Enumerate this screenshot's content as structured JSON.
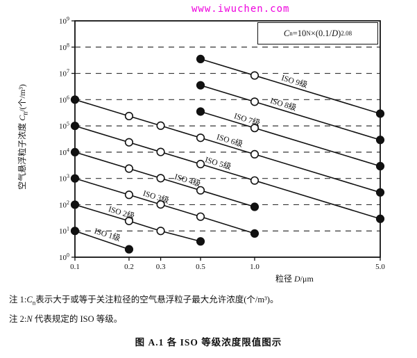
{
  "watermark": {
    "text": "www.iwuchen.com",
    "color": "#ee00dd"
  },
  "chart_data": {
    "type": "line",
    "title": "",
    "formula_text": "Cn = 10^N × (0.1/D)^2.08",
    "formula": {
      "c": "C",
      "c_sub": "n",
      "eq": "=10",
      "n_sup": "N",
      "mid": "×(0.1/",
      "d": "D",
      "close": ")",
      "exp": "2.08"
    },
    "xlabel": "粒径 D/μm",
    "xlabel_parts": {
      "pre": "粒径 ",
      "var": "D",
      "post": "/μm"
    },
    "ylabel": "空气悬浮粒子浓度 Cn/(个/m³)",
    "ylabel_parts": {
      "pre": "空气悬浮粒子浓度 ",
      "var": "C",
      "sub": "n",
      "post": "/(个/m³)"
    },
    "log_x": true,
    "log_y": true,
    "xlim": [
      0.1,
      5.0
    ],
    "ylim_exp": [
      0,
      9
    ],
    "x_ticks": [
      0.1,
      0.2,
      0.3,
      0.5,
      1.0,
      5.0
    ],
    "x_tick_labels": [
      "0.1",
      "0.2",
      "0.3",
      "0.5",
      "1.0",
      "5.0"
    ],
    "y_tick_exponents": [
      0,
      1,
      2,
      3,
      4,
      5,
      6,
      7,
      8,
      9
    ],
    "slope_exponent": 2.08,
    "marker_rule": "endpoints filled black, intermediate points open white",
    "grid": "horizontal dashed lines at each decade",
    "series": [
      {
        "name": "ISO 1级",
        "x": [
          0.1,
          0.2
        ],
        "y": [
          10,
          2
        ],
        "label_D": 0.15
      },
      {
        "name": "ISO 2级",
        "x": [
          0.1,
          0.2,
          0.3,
          0.5
        ],
        "y": [
          100,
          24,
          10,
          4
        ],
        "label_D": 0.18
      },
      {
        "name": "ISO 3级",
        "x": [
          0.1,
          0.2,
          0.3,
          0.5,
          1.0
        ],
        "y": [
          1000,
          237,
          102,
          35,
          8
        ],
        "label_D": 0.28
      },
      {
        "name": "ISO 4级",
        "x": [
          0.1,
          0.2,
          0.3,
          0.5,
          1.0
        ],
        "y": [
          10000,
          2370,
          1020,
          352,
          83
        ],
        "label_D": 0.42
      },
      {
        "name": "ISO 5级",
        "x": [
          0.1,
          0.2,
          0.3,
          0.5,
          1.0,
          5.0
        ],
        "y": [
          100000,
          23700,
          10200,
          3520,
          832,
          29
        ],
        "label_D": 0.62
      },
      {
        "name": "ISO 6级",
        "x": [
          0.1,
          0.2,
          0.3,
          0.5,
          1.0,
          5.0
        ],
        "y": [
          1000000,
          237000,
          102000,
          35200,
          8320,
          293
        ],
        "label_D": 0.72
      },
      {
        "name": "ISO 7级",
        "x": [
          0.5,
          1.0,
          5.0
        ],
        "y": [
          352000,
          83200,
          2930
        ],
        "label_D": 0.9
      },
      {
        "name": "ISO 8级",
        "x": [
          0.5,
          1.0,
          5.0
        ],
        "y": [
          3520000,
          832000,
          29300
        ],
        "label_D": 1.43
      },
      {
        "name": "ISO 9级",
        "x": [
          0.5,
          1.0,
          5.0
        ],
        "y": [
          35200000,
          8320000,
          293000
        ],
        "label_D": 1.65
      }
    ]
  },
  "notes": [
    {
      "label": "注 1:",
      "var": "C",
      "sub": "n",
      "text": "表示大于或等于关注粒径的空气悬浮粒子最大允许浓度(个/m³)。"
    },
    {
      "label": "注 2:",
      "var": "N",
      "sub": "",
      "text": " 代表规定的 ISO 等级。"
    }
  ],
  "caption": "图 A.1  各 ISO 等级浓度限值图示"
}
